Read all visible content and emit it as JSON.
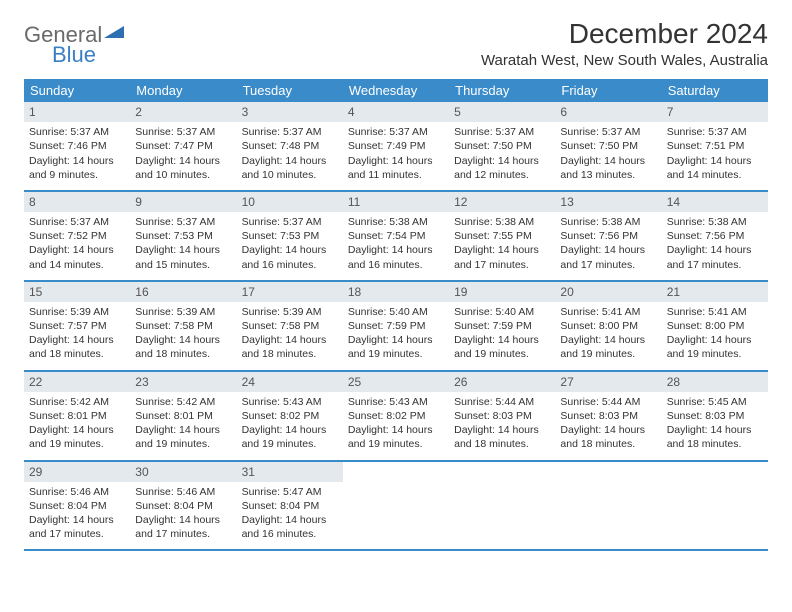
{
  "logo": {
    "part1": "General",
    "part2": "Blue"
  },
  "title": "December 2024",
  "location": "Waratah West, New South Wales, Australia",
  "colors": {
    "header_bg": "#3a8bc9",
    "daynum_bg": "#e4e9ee",
    "row_border": "#3a8bc9",
    "logo_gray": "#6a6a6a",
    "logo_blue": "#3a7fc4",
    "text": "#333333",
    "bg": "#ffffff"
  },
  "weekdays": [
    "Sunday",
    "Monday",
    "Tuesday",
    "Wednesday",
    "Thursday",
    "Friday",
    "Saturday"
  ],
  "weeks": [
    [
      {
        "n": "1",
        "sr": "5:37 AM",
        "ss": "7:46 PM",
        "dl": "14 hours and 9 minutes."
      },
      {
        "n": "2",
        "sr": "5:37 AM",
        "ss": "7:47 PM",
        "dl": "14 hours and 10 minutes."
      },
      {
        "n": "3",
        "sr": "5:37 AM",
        "ss": "7:48 PM",
        "dl": "14 hours and 10 minutes."
      },
      {
        "n": "4",
        "sr": "5:37 AM",
        "ss": "7:49 PM",
        "dl": "14 hours and 11 minutes."
      },
      {
        "n": "5",
        "sr": "5:37 AM",
        "ss": "7:50 PM",
        "dl": "14 hours and 12 minutes."
      },
      {
        "n": "6",
        "sr": "5:37 AM",
        "ss": "7:50 PM",
        "dl": "14 hours and 13 minutes."
      },
      {
        "n": "7",
        "sr": "5:37 AM",
        "ss": "7:51 PM",
        "dl": "14 hours and 14 minutes."
      }
    ],
    [
      {
        "n": "8",
        "sr": "5:37 AM",
        "ss": "7:52 PM",
        "dl": "14 hours and 14 minutes."
      },
      {
        "n": "9",
        "sr": "5:37 AM",
        "ss": "7:53 PM",
        "dl": "14 hours and 15 minutes."
      },
      {
        "n": "10",
        "sr": "5:37 AM",
        "ss": "7:53 PM",
        "dl": "14 hours and 16 minutes."
      },
      {
        "n": "11",
        "sr": "5:38 AM",
        "ss": "7:54 PM",
        "dl": "14 hours and 16 minutes."
      },
      {
        "n": "12",
        "sr": "5:38 AM",
        "ss": "7:55 PM",
        "dl": "14 hours and 17 minutes."
      },
      {
        "n": "13",
        "sr": "5:38 AM",
        "ss": "7:56 PM",
        "dl": "14 hours and 17 minutes."
      },
      {
        "n": "14",
        "sr": "5:38 AM",
        "ss": "7:56 PM",
        "dl": "14 hours and 17 minutes."
      }
    ],
    [
      {
        "n": "15",
        "sr": "5:39 AM",
        "ss": "7:57 PM",
        "dl": "14 hours and 18 minutes."
      },
      {
        "n": "16",
        "sr": "5:39 AM",
        "ss": "7:58 PM",
        "dl": "14 hours and 18 minutes."
      },
      {
        "n": "17",
        "sr": "5:39 AM",
        "ss": "7:58 PM",
        "dl": "14 hours and 18 minutes."
      },
      {
        "n": "18",
        "sr": "5:40 AM",
        "ss": "7:59 PM",
        "dl": "14 hours and 19 minutes."
      },
      {
        "n": "19",
        "sr": "5:40 AM",
        "ss": "7:59 PM",
        "dl": "14 hours and 19 minutes."
      },
      {
        "n": "20",
        "sr": "5:41 AM",
        "ss": "8:00 PM",
        "dl": "14 hours and 19 minutes."
      },
      {
        "n": "21",
        "sr": "5:41 AM",
        "ss": "8:00 PM",
        "dl": "14 hours and 19 minutes."
      }
    ],
    [
      {
        "n": "22",
        "sr": "5:42 AM",
        "ss": "8:01 PM",
        "dl": "14 hours and 19 minutes."
      },
      {
        "n": "23",
        "sr": "5:42 AM",
        "ss": "8:01 PM",
        "dl": "14 hours and 19 minutes."
      },
      {
        "n": "24",
        "sr": "5:43 AM",
        "ss": "8:02 PM",
        "dl": "14 hours and 19 minutes."
      },
      {
        "n": "25",
        "sr": "5:43 AM",
        "ss": "8:02 PM",
        "dl": "14 hours and 19 minutes."
      },
      {
        "n": "26",
        "sr": "5:44 AM",
        "ss": "8:03 PM",
        "dl": "14 hours and 18 minutes."
      },
      {
        "n": "27",
        "sr": "5:44 AM",
        "ss": "8:03 PM",
        "dl": "14 hours and 18 minutes."
      },
      {
        "n": "28",
        "sr": "5:45 AM",
        "ss": "8:03 PM",
        "dl": "14 hours and 18 minutes."
      }
    ],
    [
      {
        "n": "29",
        "sr": "5:46 AM",
        "ss": "8:04 PM",
        "dl": "14 hours and 17 minutes."
      },
      {
        "n": "30",
        "sr": "5:46 AM",
        "ss": "8:04 PM",
        "dl": "14 hours and 17 minutes."
      },
      {
        "n": "31",
        "sr": "5:47 AM",
        "ss": "8:04 PM",
        "dl": "14 hours and 16 minutes."
      },
      null,
      null,
      null,
      null
    ]
  ],
  "labels": {
    "sunrise": "Sunrise:",
    "sunset": "Sunset:",
    "daylight": "Daylight:"
  }
}
